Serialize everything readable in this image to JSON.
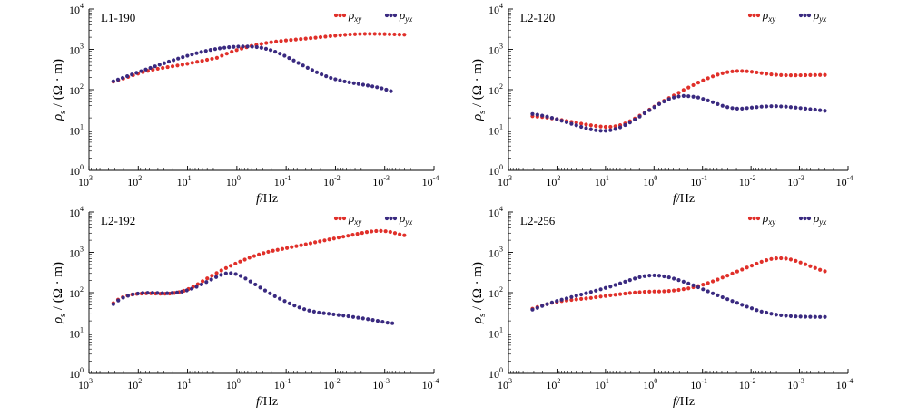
{
  "colors": {
    "rho_xy": "#e0302a",
    "rho_yx": "#3a2a80",
    "axis": "#000000"
  },
  "chart_data": [
    {
      "type": "scatter",
      "title": "L1-190",
      "xlabel_main": "f",
      "xlabel_unit": "/Hz",
      "ylabel_main": "ρ",
      "ylabel_sub": "s",
      "ylabel_unit": " / (Ω · m)",
      "x_scale": "log",
      "y_scale": "log",
      "x_reversed": true,
      "xlim": [
        1000,
        0.0001
      ],
      "ylim": [
        1,
        10000
      ],
      "x_ticks": [
        {
          "base": "10",
          "exp": "3"
        },
        {
          "base": "10",
          "exp": "2"
        },
        {
          "base": "10",
          "exp": "1"
        },
        {
          "base": "10",
          "exp": "0"
        },
        {
          "base": "10",
          "exp": "-1"
        },
        {
          "base": "10",
          "exp": "-2"
        },
        {
          "base": "10",
          "exp": "-3"
        },
        {
          "base": "10",
          "exp": "-4"
        }
      ],
      "y_ticks": [
        {
          "base": "10",
          "exp": "0"
        },
        {
          "base": "10",
          "exp": "1"
        },
        {
          "base": "10",
          "exp": "2"
        },
        {
          "base": "10",
          "exp": "3"
        },
        {
          "base": "10",
          "exp": "4"
        }
      ],
      "legend_position": "top-right",
      "series": [
        {
          "name": "ρ",
          "name_sub": "xy",
          "color_key": "rho_xy",
          "f_range": [
            320,
            0.0004
          ],
          "rho": [
            158,
            172,
            188,
            207,
            228,
            250,
            272,
            293,
            312,
            330,
            346,
            363,
            380,
            398,
            418,
            440,
            465,
            492,
            520,
            551,
            583,
            617,
            697,
            785,
            873,
            960,
            1047,
            1130,
            1212,
            1290,
            1364,
            1435,
            1500,
            1560,
            1615,
            1665,
            1710,
            1755,
            1800,
            1845,
            1895,
            1950,
            2008,
            2068,
            2130,
            2190,
            2248,
            2300,
            2345,
            2380,
            2405,
            2420,
            2425,
            2420,
            2408,
            2390,
            2372,
            2355,
            2338,
            2320
          ]
        },
        {
          "name": "ρ",
          "name_sub": "yx",
          "color_key": "rho_yx",
          "f_range": [
            320,
            0.00075
          ],
          "rho": [
            162,
            178,
            196,
            216,
            238,
            262,
            288,
            316,
            347,
            380,
            416,
            455,
            497,
            542,
            590,
            641,
            694,
            749,
            805,
            861,
            916,
            968,
            1016,
            1060,
            1098,
            1130,
            1155,
            1172,
            1180,
            1178,
            1165,
            1138,
            1095,
            1035,
            960,
            875,
            785,
            695,
            609,
            530,
            460,
            400,
            349,
            306,
            270,
            240,
            216,
            196,
            181,
            170,
            160,
            152,
            145,
            139,
            133,
            127,
            121,
            115,
            108,
            100,
            92
          ]
        }
      ]
    },
    {
      "type": "scatter",
      "title": "L2-120",
      "xlabel_main": "f",
      "xlabel_unit": "/Hz",
      "ylabel_main": "ρ",
      "ylabel_sub": "s",
      "ylabel_unit": " / (Ω · m)",
      "x_scale": "log",
      "y_scale": "log",
      "x_reversed": true,
      "xlim": [
        1000,
        0.0001
      ],
      "ylim": [
        1,
        10000
      ],
      "x_ticks": [
        {
          "base": "10",
          "exp": "3"
        },
        {
          "base": "10",
          "exp": "2"
        },
        {
          "base": "10",
          "exp": "1"
        },
        {
          "base": "10",
          "exp": "0"
        },
        {
          "base": "10",
          "exp": "-1"
        },
        {
          "base": "10",
          "exp": "-2"
        },
        {
          "base": "10",
          "exp": "-3"
        },
        {
          "base": "10",
          "exp": "-4"
        }
      ],
      "y_ticks": [
        {
          "base": "10",
          "exp": "0"
        },
        {
          "base": "10",
          "exp": "1"
        },
        {
          "base": "10",
          "exp": "2"
        },
        {
          "base": "10",
          "exp": "3"
        },
        {
          "base": "10",
          "exp": "4"
        }
      ],
      "legend_position": "top-right",
      "series": [
        {
          "name": "ρ",
          "name_sub": "xy",
          "color_key": "rho_xy",
          "f_range": [
            320,
            0.0003
          ],
          "rho": [
            22,
            21.5,
            21,
            20.3,
            19.5,
            18.6,
            17.7,
            16.8,
            16,
            15.2,
            14.4,
            13.7,
            13.1,
            12.6,
            12.2,
            12,
            12,
            12.4,
            13.2,
            14.6,
            16.6,
            19.3,
            22.8,
            27,
            32,
            38,
            45,
            53,
            62,
            72,
            84,
            98,
            113,
            130,
            150,
            170,
            192,
            214,
            236,
            256,
            272,
            284,
            290,
            290,
            286,
            278,
            268,
            258,
            248,
            240,
            234,
            230,
            228,
            227,
            227,
            228,
            229,
            230,
            231,
            232,
            232
          ]
        },
        {
          "name": "ρ",
          "name_sub": "yx",
          "color_key": "rho_yx",
          "f_range": [
            320,
            0.0003
          ],
          "rho": [
            25,
            24,
            22.8,
            21.5,
            20,
            18.5,
            17,
            15.6,
            14.3,
            13.1,
            12,
            11.1,
            10.4,
            9.9,
            9.6,
            9.6,
            9.9,
            10.6,
            11.7,
            13.3,
            15.4,
            18.2,
            21.6,
            26,
            31,
            37,
            44,
            51,
            58,
            64,
            68,
            70,
            69,
            67,
            64,
            59,
            54,
            49,
            44,
            40,
            37,
            35,
            34,
            34,
            35,
            36,
            37,
            38,
            38.5,
            39,
            39,
            38.5,
            38,
            37,
            36,
            35,
            34,
            33,
            32,
            31,
            30
          ]
        }
      ]
    },
    {
      "type": "scatter",
      "title": "L2-192",
      "xlabel_main": "f",
      "xlabel_unit": "/Hz",
      "ylabel_main": "ρ",
      "ylabel_sub": "s",
      "ylabel_unit": " / (Ω · m)",
      "x_scale": "log",
      "y_scale": "log",
      "x_reversed": true,
      "xlim": [
        1000,
        0.0001
      ],
      "ylim": [
        1,
        10000
      ],
      "x_ticks": [
        {
          "base": "10",
          "exp": "3"
        },
        {
          "base": "10",
          "exp": "2"
        },
        {
          "base": "10",
          "exp": "1"
        },
        {
          "base": "10",
          "exp": "0"
        },
        {
          "base": "10",
          "exp": "-1"
        },
        {
          "base": "10",
          "exp": "-2"
        },
        {
          "base": "10",
          "exp": "-3"
        },
        {
          "base": "10",
          "exp": "-4"
        }
      ],
      "y_ticks": [
        {
          "base": "10",
          "exp": "0"
        },
        {
          "base": "10",
          "exp": "1"
        },
        {
          "base": "10",
          "exp": "2"
        },
        {
          "base": "10",
          "exp": "3"
        },
        {
          "base": "10",
          "exp": "4"
        }
      ],
      "legend_position": "top-right",
      "series": [
        {
          "name": "ρ",
          "name_sub": "xy",
          "color_key": "rho_xy",
          "f_range": [
            320,
            0.0004
          ],
          "rho": [
            55,
            67,
            77,
            85,
            90,
            93,
            95,
            96,
            96,
            95,
            94,
            94,
            95,
            98,
            103,
            111,
            123,
            140,
            163,
            192,
            226,
            264,
            307,
            355,
            408,
            465,
            525,
            590,
            660,
            735,
            810,
            885,
            960,
            1030,
            1095,
            1155,
            1215,
            1280,
            1350,
            1425,
            1505,
            1590,
            1680,
            1775,
            1875,
            1980,
            2090,
            2205,
            2325,
            2450,
            2580,
            2720,
            2870,
            3030,
            3180,
            3300,
            3380,
            3400,
            3340,
            3200,
            3000,
            2800,
            2650
          ]
        },
        {
          "name": "ρ",
          "name_sub": "yx",
          "color_key": "rho_yx",
          "f_range": [
            320,
            0.0007
          ],
          "rho": [
            52,
            64,
            75,
            84,
            91,
            95,
            98,
            99,
            99,
            98,
            97,
            97,
            98,
            101,
            106,
            114,
            125,
            140,
            160,
            184,
            212,
            244,
            276,
            300,
            305,
            290,
            260,
            225,
            190,
            160,
            134,
            113,
            96,
            82,
            71,
            62,
            54,
            48,
            43,
            39,
            36,
            34,
            32,
            31,
            30,
            29,
            28,
            27,
            26,
            25,
            24,
            23,
            22,
            21,
            20,
            19,
            18,
            17.5
          ]
        }
      ]
    },
    {
      "type": "scatter",
      "title": "L2-256",
      "xlabel_main": "f",
      "xlabel_unit": "/Hz",
      "ylabel_main": "ρ",
      "ylabel_sub": "s",
      "ylabel_unit": " / (Ω · m)",
      "x_scale": "log",
      "y_scale": "log",
      "x_reversed": true,
      "xlim": [
        1000,
        0.0001
      ],
      "ylim": [
        1,
        10000
      ],
      "x_ticks": [
        {
          "base": "10",
          "exp": "3"
        },
        {
          "base": "10",
          "exp": "2"
        },
        {
          "base": "10",
          "exp": "1"
        },
        {
          "base": "10",
          "exp": "0"
        },
        {
          "base": "10",
          "exp": "-1"
        },
        {
          "base": "10",
          "exp": "-2"
        },
        {
          "base": "10",
          "exp": "-3"
        },
        {
          "base": "10",
          "exp": "-4"
        }
      ],
      "y_ticks": [
        {
          "base": "10",
          "exp": "0"
        },
        {
          "base": "10",
          "exp": "1"
        },
        {
          "base": "10",
          "exp": "2"
        },
        {
          "base": "10",
          "exp": "3"
        },
        {
          "base": "10",
          "exp": "4"
        }
      ],
      "legend_position": "top-right",
      "series": [
        {
          "name": "ρ",
          "name_sub": "xy",
          "color_key": "rho_xy",
          "f_range": [
            320,
            0.0003
          ],
          "rho": [
            40,
            44,
            48,
            52,
            56,
            59,
            62,
            64,
            66,
            68,
            70,
            72,
            74,
            77,
            80,
            83,
            86,
            89,
            92,
            95,
            98,
            101,
            103,
            105,
            106,
            107,
            107,
            108,
            110,
            113,
            117,
            122,
            128,
            136,
            146,
            158,
            173,
            191,
            212,
            237,
            266,
            298,
            335,
            375,
            420,
            470,
            525,
            585,
            640,
            685,
            710,
            715,
            700,
            665,
            615,
            560,
            505,
            455,
            410,
            370,
            340
          ]
        },
        {
          "name": "ρ",
          "name_sub": "yx",
          "color_key": "rho_yx",
          "f_range": [
            320,
            0.0003
          ],
          "rho": [
            38,
            42,
            47,
            52,
            57,
            62,
            67,
            72,
            78,
            84,
            90,
            97,
            104,
            112,
            121,
            131,
            142,
            155,
            170,
            187,
            205,
            224,
            242,
            257,
            266,
            268,
            264,
            254,
            240,
            223,
            205,
            187,
            169,
            152,
            136,
            121,
            108,
            96,
            86,
            77,
            69,
            62,
            56,
            50,
            45,
            41,
            37,
            34,
            32,
            30,
            28.5,
            27.5,
            26.8,
            26.2,
            25.8,
            25.5,
            25.3,
            25.2,
            25.1,
            25,
            25
          ]
        }
      ]
    }
  ]
}
